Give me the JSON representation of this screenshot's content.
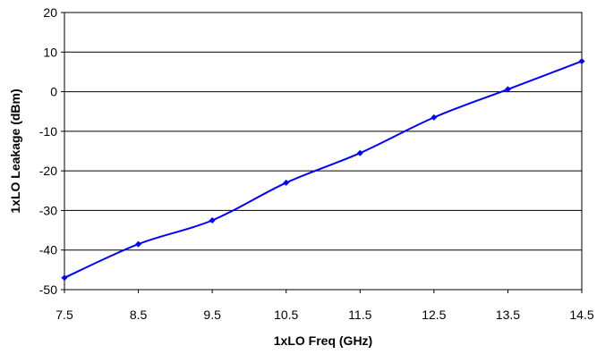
{
  "chart_data": {
    "type": "line",
    "title": "",
    "xlabel": "1xLO Freq (GHz)",
    "ylabel": "1xLO Leakage (dBm)",
    "xlim": [
      7.5,
      14.5
    ],
    "ylim": [
      -50,
      20
    ],
    "x_ticks": [
      "7.5",
      "8.5",
      "9.5",
      "10.5",
      "11.5",
      "12.5",
      "13.5",
      "14.5"
    ],
    "y_ticks": [
      "20",
      "10",
      "0",
      "-10",
      "-20",
      "-30",
      "-40",
      "-50"
    ],
    "y_tick_values": [
      20,
      10,
      0,
      -10,
      -20,
      -30,
      -40,
      -50
    ],
    "x_tick_values": [
      7.5,
      8.5,
      9.5,
      10.5,
      11.5,
      12.5,
      13.5,
      14.5
    ],
    "grid": {
      "horizontal": true,
      "vertical": false
    },
    "legend": "none",
    "series": [
      {
        "color": "#0000FF",
        "marker": "diamond",
        "x": [
          7.5,
          8.5,
          9.5,
          10.5,
          11.5,
          12.5,
          13.5,
          14.5
        ],
        "y": [
          -47,
          -38.5,
          -32.5,
          -23,
          -15.5,
          -6.5,
          0.6,
          7.7
        ]
      }
    ]
  }
}
